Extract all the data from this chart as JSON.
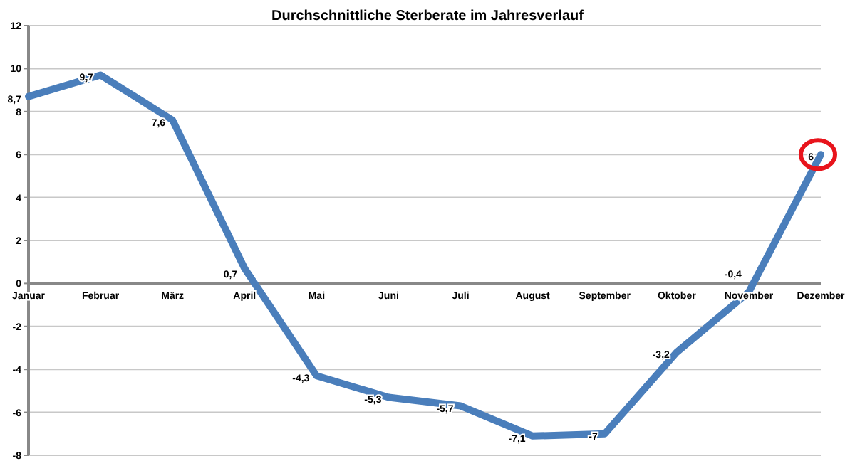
{
  "chart_data": {
    "type": "line",
    "title": "Durchschnittliche Sterberate im Jahresverlauf",
    "categories": [
      "Januar",
      "Februar",
      "März",
      "April",
      "Mai",
      "Juni",
      "Juli",
      "August",
      "September",
      "Oktober",
      "November",
      "Dezember"
    ],
    "series": [
      {
        "color": "#4a7ebb",
        "values": [
          8.7,
          9.7,
          7.6,
          0.7,
          -4.3,
          -5.3,
          -5.7,
          -7.1,
          -7,
          -3.2,
          -0.4,
          6
        ]
      }
    ],
    "value_labels": [
      "8,7",
      "9,7",
      "7,6",
      "0,7",
      "-4,3",
      "-5,3",
      "-5,7",
      "-7,1",
      "-7",
      "-3,2",
      "-0,4",
      "6"
    ],
    "ylim": [
      -8,
      12
    ],
    "yticks": [
      -8,
      -6,
      -4,
      -2,
      0,
      2,
      4,
      6,
      8,
      10,
      12
    ],
    "grid": "y",
    "marker": "none",
    "line_style": "solid"
  }
}
